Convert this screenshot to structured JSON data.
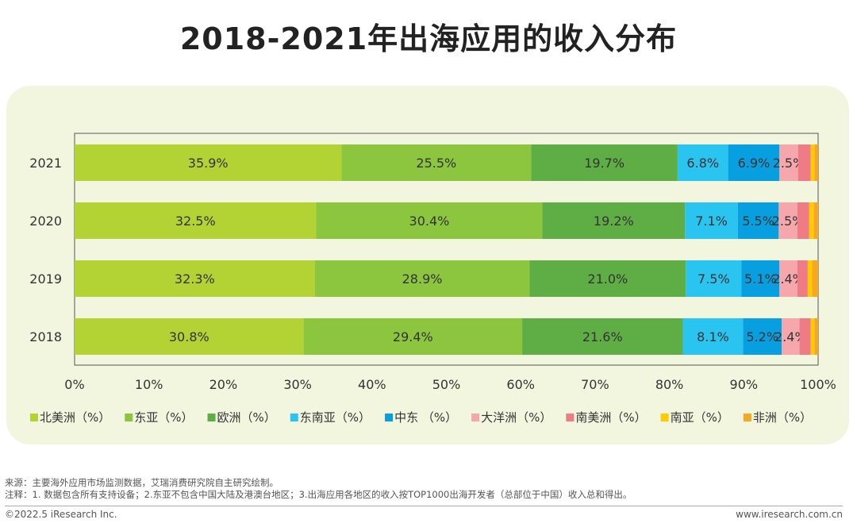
{
  "title": "2018-2021年出海应用的收入分布",
  "chart_data": {
    "type": "bar",
    "orientation": "horizontal",
    "stacked": true,
    "categories": [
      "2021",
      "2020",
      "2019",
      "2018"
    ],
    "xlim": [
      0,
      100
    ],
    "x_ticks": [
      "0%",
      "10%",
      "20%",
      "30%",
      "40%",
      "50%",
      "60%",
      "70%",
      "80%",
      "90%",
      "100%"
    ],
    "legend_position": "bottom",
    "series": [
      {
        "name": "北美洲（%）",
        "color": "#b3d334",
        "values": [
          35.9,
          32.5,
          32.3,
          30.8
        ],
        "labels": [
          "35.9%",
          "32.5%",
          "32.3%",
          "30.8%"
        ]
      },
      {
        "name": "东亚（%）",
        "color": "#8cc63f",
        "values": [
          25.5,
          30.4,
          28.9,
          29.4
        ],
        "labels": [
          "25.5%",
          "30.4%",
          "28.9%",
          "29.4%"
        ]
      },
      {
        "name": "欧洲（%）",
        "color": "#5fae45",
        "values": [
          19.7,
          19.2,
          21.0,
          21.6
        ],
        "labels": [
          "19.7%",
          "19.2%",
          "21.0%",
          "21.6%"
        ]
      },
      {
        "name": "东南亚（%）",
        "color": "#29c4f0",
        "values": [
          6.8,
          7.1,
          7.5,
          8.1
        ],
        "labels": [
          "6.8%",
          "7.1%",
          "7.5%",
          "8.1%"
        ]
      },
      {
        "name": "中东 （%）",
        "color": "#079fdf",
        "values": [
          6.9,
          5.5,
          5.1,
          5.2
        ],
        "labels": [
          "6.9%",
          "5.5%",
          "5.1%",
          "5.2%"
        ]
      },
      {
        "name": "大洋洲（%）",
        "color": "#f5a7ac",
        "values": [
          2.5,
          2.5,
          2.4,
          2.4
        ],
        "labels": [
          "2.5%",
          "2.5%",
          "2.4%",
          "2.4%"
        ]
      },
      {
        "name": "南美洲（%）",
        "color": "#ef7b84",
        "values": [
          1.7,
          1.6,
          1.4,
          1.5
        ],
        "labels": [
          "",
          "",
          "",
          ""
        ]
      },
      {
        "name": "南亚（%）",
        "color": "#ffcc00",
        "values": [
          0.5,
          0.6,
          0.6,
          0.5
        ],
        "labels": [
          "",
          "",
          "",
          ""
        ]
      },
      {
        "name": "非洲（%）",
        "color": "#f7a823",
        "values": [
          0.5,
          0.6,
          0.8,
          0.5
        ],
        "labels": [
          "",
          "",
          "",
          ""
        ]
      }
    ]
  },
  "footer": {
    "source": "来源：主要海外应用市场监测数据，艾瑞消费研究院自主研究绘制。",
    "note": "注释：1. 数据包含所有支持设备；2.东亚不包含中国大陆及港澳台地区；3.出海应用各地区的收入按TOP1000出海开发者（总部位于中国）收入总和得出。",
    "copyright": "©2022.5 iResearch Inc.",
    "url": "www.iresearch.com.cn"
  }
}
